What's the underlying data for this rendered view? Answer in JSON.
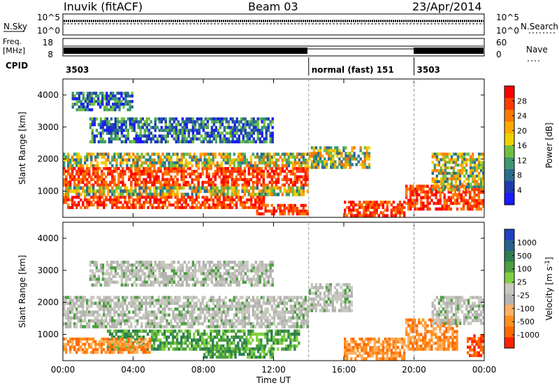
{
  "header": {
    "station": "Inuvik (fitACF)",
    "beam": "Beam 03",
    "date": "23/Apr/2014"
  },
  "top_panels": {
    "nsky": {
      "label": "N.Sky",
      "ticks": [
        "10^5",
        "10^0"
      ]
    },
    "nsearch": {
      "label": "N.Search",
      "ticks": [
        "10^5",
        "10^0"
      ]
    },
    "freq": {
      "label_line1": "Freq.",
      "label_line2": "[MHz]",
      "ticks": [
        "18",
        "8"
      ]
    },
    "nave": {
      "label": "Nave",
      "ticks": [
        "60",
        "0"
      ]
    },
    "cpid": {
      "label": "CPID",
      "segments": [
        {
          "start_hour": 0,
          "end_hour": 14,
          "text": "3503"
        },
        {
          "start_hour": 14,
          "end_hour": 20,
          "text": "normal (fast) 151"
        },
        {
          "start_hour": 20,
          "end_hour": 24,
          "text": "3503"
        }
      ]
    }
  },
  "chart_data": [
    {
      "type": "heatmap",
      "name": "power",
      "ylabel": "Slant Range [km]",
      "yticks": [
        1000,
        2000,
        3000,
        4000
      ],
      "ylim": [
        180,
        4500
      ],
      "xlim": [
        0,
        24
      ],
      "colorbar": {
        "label": "Power [dB]",
        "ticks": [
          "28",
          "24",
          "20",
          "16",
          "12",
          "8",
          "4"
        ],
        "colors": [
          "#ff0000",
          "#ff3c00",
          "#ff7800",
          "#ffaa00",
          "#f0d000",
          "#70c040",
          "#3c9a70",
          "#2c6a90",
          "#1e3cb0",
          "#1a1aff"
        ]
      },
      "bands": [
        {
          "start": 0.0,
          "end": 14.0,
          "r0": 1150,
          "r1": 1750,
          "level": "high"
        },
        {
          "start": 0.0,
          "end": 14.0,
          "r0": 1750,
          "r1": 2200,
          "level": "mid"
        },
        {
          "start": 0.0,
          "end": 14.0,
          "r0": 850,
          "r1": 1150,
          "level": "mid"
        },
        {
          "start": 0.0,
          "end": 11.5,
          "r0": 450,
          "r1": 850,
          "level": "high"
        },
        {
          "start": 1.5,
          "end": 12.0,
          "r0": 2500,
          "r1": 3300,
          "level": "low"
        },
        {
          "start": 0.5,
          "end": 4.0,
          "r0": 3500,
          "r1": 4100,
          "level": "low"
        },
        {
          "start": 11.0,
          "end": 14.0,
          "r0": 250,
          "r1": 600,
          "level": "high"
        },
        {
          "start": 14.0,
          "end": 17.5,
          "r0": 1700,
          "r1": 2400,
          "level": "mid"
        },
        {
          "start": 16.0,
          "end": 19.5,
          "r0": 200,
          "r1": 700,
          "level": "high"
        },
        {
          "start": 19.5,
          "end": 23.0,
          "r0": 400,
          "r1": 1200,
          "level": "high"
        },
        {
          "start": 21.0,
          "end": 24.0,
          "r0": 1000,
          "r1": 2200,
          "level": "mid"
        },
        {
          "start": 23.0,
          "end": 24.0,
          "r0": 400,
          "r1": 1100,
          "level": "high"
        }
      ]
    },
    {
      "type": "heatmap",
      "name": "velocity",
      "ylabel": "Slant Range [km]",
      "xlabel": "Time UT",
      "yticks": [
        1000,
        2000,
        3000,
        4000
      ],
      "ylim": [
        180,
        4500
      ],
      "xlim": [
        0,
        24
      ],
      "xticks": [
        "00:00",
        "04:00",
        "08:00",
        "12:00",
        "16:00",
        "20:00",
        "00:00"
      ],
      "colorbar": {
        "label": "Velocity [m s",
        "label_sup": "-1",
        "ticks": [
          "1000",
          "500",
          "100",
          "25",
          "-25",
          "-100",
          "-500",
          "-1000"
        ],
        "colors": [
          "#2040c0",
          "#2a6090",
          "#2e8050",
          "#4ca040",
          "#80d040",
          "#c8c8c0",
          "#b4b4b0",
          "#ffb060",
          "#ff9020",
          "#ff6a00",
          "#ff2000"
        ]
      },
      "bands": [
        {
          "start": 0.0,
          "end": 14.0,
          "r0": 1200,
          "r1": 2200,
          "level": "ground"
        },
        {
          "start": 2.5,
          "end": 13.5,
          "r0": 500,
          "r1": 1150,
          "level": "green"
        },
        {
          "start": 0.0,
          "end": 5.0,
          "r0": 400,
          "r1": 900,
          "level": "orange"
        },
        {
          "start": 8.0,
          "end": 12.0,
          "r0": 250,
          "r1": 600,
          "level": "green"
        },
        {
          "start": 1.5,
          "end": 12.0,
          "r0": 2500,
          "r1": 3300,
          "level": "ground"
        },
        {
          "start": 14.0,
          "end": 16.5,
          "r0": 1700,
          "r1": 2600,
          "level": "ground"
        },
        {
          "start": 16.0,
          "end": 19.5,
          "r0": 200,
          "r1": 900,
          "level": "orange"
        },
        {
          "start": 19.5,
          "end": 22.5,
          "r0": 500,
          "r1": 1500,
          "level": "orange"
        },
        {
          "start": 21.0,
          "end": 24.0,
          "r0": 1300,
          "r1": 2200,
          "level": "ground"
        },
        {
          "start": 23.0,
          "end": 24.0,
          "r0": 300,
          "r1": 1000,
          "level": "red"
        }
      ]
    }
  ]
}
